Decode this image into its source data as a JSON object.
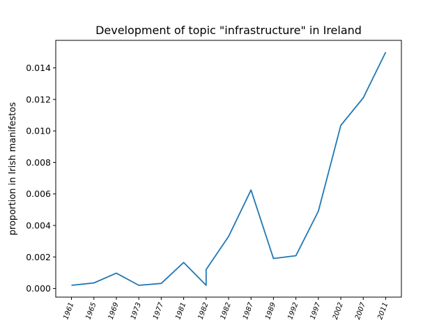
{
  "chart_data": {
    "type": "line",
    "title": "Development of topic \"infrastructure\" in Ireland",
    "xlabel": "",
    "ylabel": "proportion in Irish manifestos",
    "categories": [
      "1961",
      "1965",
      "1969",
      "1973",
      "1977",
      "1981",
      "1982",
      "1982",
      "1982",
      "1987",
      "1989",
      "1992",
      "1997",
      "2002",
      "2007",
      "2011"
    ],
    "tick_labels": [
      "1961",
      "1965",
      "1969",
      "1973",
      "1977",
      "1981",
      "1982",
      "1982",
      "1987",
      "1989",
      "1992",
      "1997",
      "2002",
      "2007",
      "2011"
    ],
    "tick_positions": [
      0,
      1,
      2,
      3,
      4,
      5,
      6,
      7,
      8,
      9,
      10,
      11,
      12,
      13,
      14
    ],
    "x_index": [
      0,
      1,
      2,
      3,
      4,
      5,
      6,
      6,
      7,
      8,
      9,
      10,
      11,
      12,
      13,
      14
    ],
    "values": [
      0.0002,
      0.00035,
      0.00097,
      0.0002,
      0.00032,
      0.00165,
      0.0002,
      0.0012,
      0.0033,
      0.00625,
      0.0019,
      0.00208,
      0.0049,
      0.01035,
      0.0121,
      0.015
    ],
    "ylim": [
      -0.00055,
      0.01575
    ],
    "xlim": [
      -0.7,
      14.7
    ],
    "yticks": [
      0.0,
      0.002,
      0.004,
      0.006,
      0.008,
      0.01,
      0.012,
      0.014
    ],
    "ytick_labels": [
      "0.000",
      "0.002",
      "0.004",
      "0.006",
      "0.008",
      "0.010",
      "0.012",
      "0.014"
    ],
    "line_color": "#1f77b4",
    "grid": false,
    "legend": "none"
  }
}
